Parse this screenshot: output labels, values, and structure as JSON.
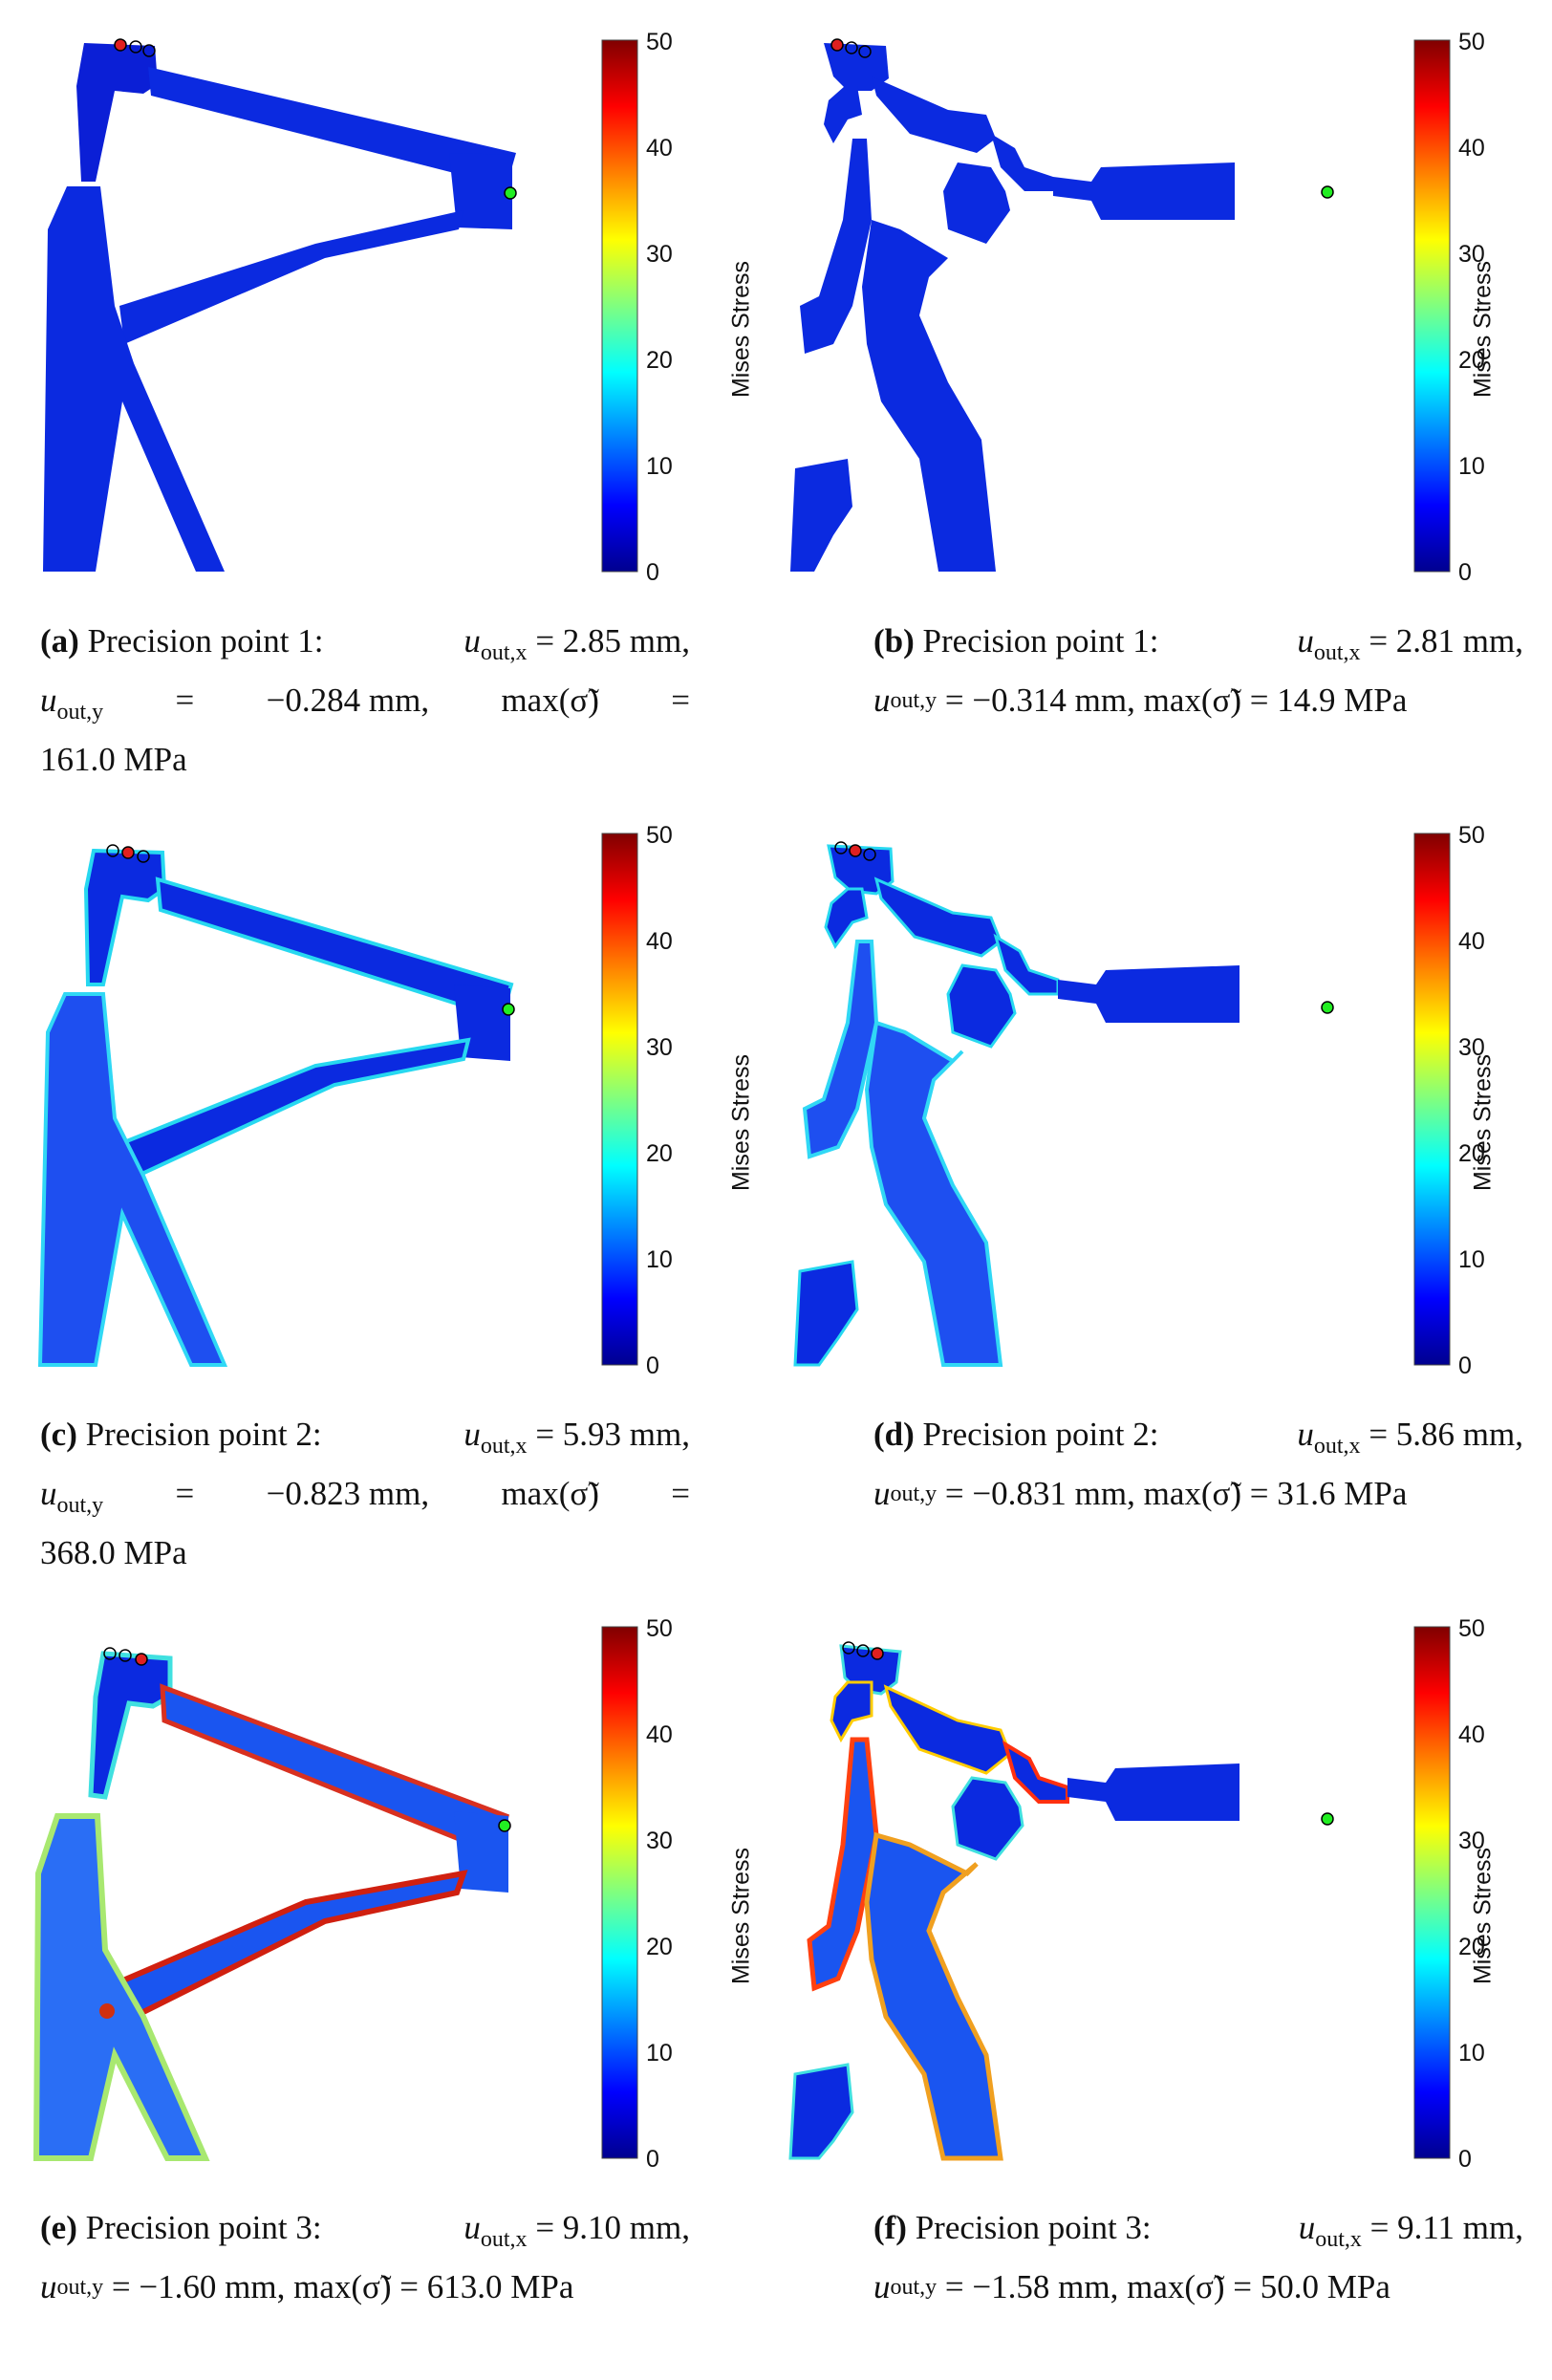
{
  "colorbar": {
    "label": "Mises Stress",
    "ticks": [
      "0",
      "10",
      "20",
      "30",
      "40",
      "50"
    ],
    "range": [
      0,
      50
    ]
  },
  "panels": [
    {
      "id": "a",
      "layout_variant": "left",
      "stress_level": "low",
      "caption": {
        "label": "(a)",
        "line1": "Precision point 1:",
        "ux_sym": "u",
        "ux_sub": "out,x",
        "ux_val": "= 2.85 mm,",
        "uy_sym": "u",
        "uy_sub": "out,y",
        "uy_val": "−0.284 mm,",
        "max_sym": "max(σ̃)",
        "max_val": "161.0 MPa"
      }
    },
    {
      "id": "b",
      "layout_variant": "right",
      "stress_level": "low",
      "caption": {
        "label": "(b)",
        "line1": "Precision point 1:",
        "ux_sym": "u",
        "ux_sub": "out,x",
        "ux_val": "= 2.81 mm,",
        "uy_sym": "u",
        "uy_sub": "out,y",
        "uy_val": "= −0.314 mm,",
        "max_sym": "max(σ̃)",
        "max_val": "= 14.9 MPa"
      }
    },
    {
      "id": "c",
      "layout_variant": "left",
      "stress_level": "mid",
      "caption": {
        "label": "(c)",
        "line1": "Precision point 2:",
        "ux_sym": "u",
        "ux_sub": "out,x",
        "ux_val": "= 5.93 mm,",
        "uy_sym": "u",
        "uy_sub": "out,y",
        "uy_val": "−0.823 mm,",
        "max_sym": "max(σ̃)",
        "max_val": "368.0 MPa"
      }
    },
    {
      "id": "d",
      "layout_variant": "right",
      "stress_level": "mid",
      "caption": {
        "label": "(d)",
        "line1": "Precision point 2:",
        "ux_sym": "u",
        "ux_sub": "out,x",
        "ux_val": "= 5.86 mm,",
        "uy_sym": "u",
        "uy_sub": "out,y",
        "uy_val": "= −0.831 mm,",
        "max_sym": "max(σ̃)",
        "max_val": "= 31.6 MPa"
      }
    },
    {
      "id": "e",
      "layout_variant": "left",
      "stress_level": "high",
      "caption": {
        "label": "(e)",
        "line1": "Precision point 3:",
        "ux_sym": "u",
        "ux_sub": "out,x",
        "ux_val": "= 9.10 mm,",
        "uy_sym": "u",
        "uy_sub": "out,y",
        "uy_val": "= −1.60 mm,",
        "max_sym": "max(σ̃)",
        "max_val": "= 613.0 MPa"
      }
    },
    {
      "id": "f",
      "layout_variant": "right",
      "stress_level": "high",
      "caption": {
        "label": "(f)",
        "line1": "Precision point 3:",
        "ux_sym": "u",
        "ux_sub": "out,x",
        "ux_val": "= 9.11 mm,",
        "uy_sym": "u",
        "uy_sub": "out,y",
        "uy_val": "= −1.58 mm,",
        "max_sym": "max(σ̃)",
        "max_val": "= 50.0 MPa"
      }
    }
  ]
}
